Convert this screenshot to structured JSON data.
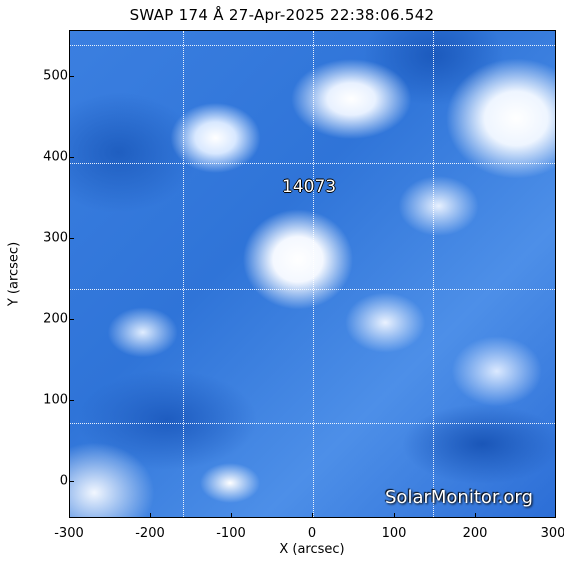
{
  "title": "SWAP 174 Å 27-Apr-2025 22:38:06.542",
  "active_region": "14073",
  "watermark": "SolarMonitor.org",
  "axes": {
    "xlabel": "X (arcsec)",
    "ylabel": "Y (arcsec)",
    "xticks": [
      "-300",
      "-200",
      "-100",
      "0",
      "100",
      "200",
      "300"
    ],
    "yticks": [
      "0",
      "100",
      "200",
      "300",
      "400",
      "500"
    ]
  },
  "colors": {
    "dark_blue": "#1a56b8",
    "mid_blue": "#3b7fe0",
    "bright": "#ffffff"
  }
}
